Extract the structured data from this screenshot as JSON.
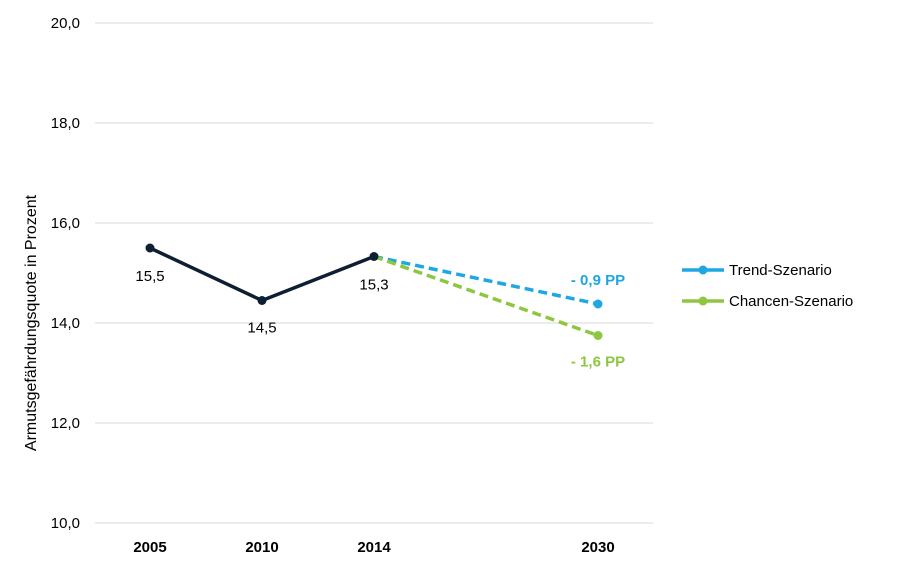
{
  "chart_data": {
    "type": "line",
    "ylabel": "Armutsgefährdungsquote  in Prozent",
    "ylim": [
      10,
      20
    ],
    "yticks": [
      "10,0",
      "12,0",
      "14,0",
      "16,0",
      "18,0",
      "20,0"
    ],
    "grid": true,
    "legend_position": "right",
    "categories": [
      "2005",
      "2010",
      "2014",
      "2030"
    ],
    "series": [
      {
        "key": "historical",
        "x": [
          "2005",
          "2010",
          "2014"
        ],
        "values": [
          15.5,
          14.45,
          15.33
        ],
        "labels": [
          "15,5",
          "14,5",
          "15,3"
        ],
        "color": "#0e1f33",
        "style": "solid"
      },
      {
        "key": "trend",
        "name": "Trend-Szenario",
        "x": [
          "2014",
          "2030"
        ],
        "values": [
          15.33,
          14.38
        ],
        "color": "#1ea7e1",
        "style": "dashed",
        "annotation": "- 0,9 PP"
      },
      {
        "key": "chancen",
        "name": "Chancen-Szenario",
        "x": [
          "2014",
          "2030"
        ],
        "values": [
          15.33,
          13.75
        ],
        "color": "#8dc63f",
        "style": "dashed",
        "annotation": "- 1,6 PP"
      }
    ]
  }
}
